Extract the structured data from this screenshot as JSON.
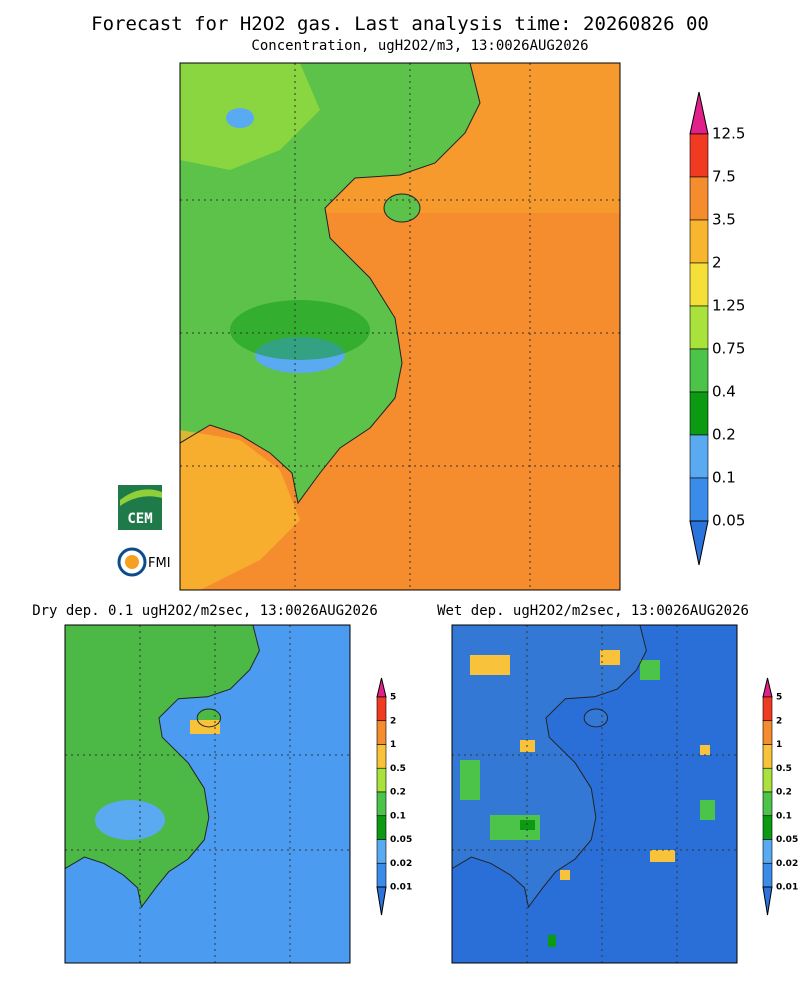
{
  "title": "Forecast for H2O2 gas. Last analysis time: 20260826 00",
  "subtitle": "Concentration, ugH2O2/m3, 13:0026AUG2026",
  "main_colorbar": {
    "labels": [
      "12.5",
      "7.5",
      "3.5",
      "2",
      "1.25",
      "0.75",
      "0.4",
      "0.2",
      "0.1",
      "0.05"
    ],
    "colors": [
      "#e0218a",
      "#f03a22",
      "#f58d2f",
      "#f8b52e",
      "#f5e03a",
      "#a8e23a",
      "#4cc44a",
      "#0b9a12",
      "#5aaaf2",
      "#3b8ce8",
      "#2a74dc"
    ]
  },
  "dry_panel": {
    "title": "Dry dep. 0.1 ugH2O2/m2sec, 13:0026AUG2026",
    "colorbar": {
      "labels": [
        "5",
        "2",
        "1",
        "0.5",
        "0.2",
        "0.1",
        "0.05",
        "0.02",
        "0.01"
      ],
      "colors": [
        "#e0218a",
        "#f03a22",
        "#f58d2f",
        "#f8c23a",
        "#a8e23a",
        "#4cc44a",
        "#0b9a12",
        "#5aaaf2",
        "#3b8ce8",
        "#2a74dc"
      ]
    }
  },
  "wet_panel": {
    "title": "Wet dep. ugH2O2/m2sec, 13:0026AUG2026",
    "colorbar": {
      "labels": [
        "5",
        "2",
        "1",
        "0.5",
        "0.2",
        "0.1",
        "0.05",
        "0.02",
        "0.01"
      ],
      "colors": [
        "#e0218a",
        "#f03a22",
        "#f58d2f",
        "#f8c23a",
        "#a8e23a",
        "#4cc44a",
        "#0b9a12",
        "#5aaaf2",
        "#3b8ce8",
        "#2a74dc"
      ]
    }
  },
  "logos": {
    "cem": "CEM",
    "fmi": "FMI"
  }
}
